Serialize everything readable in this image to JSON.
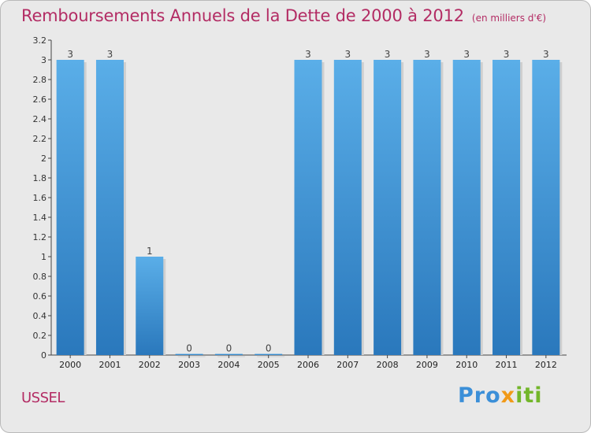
{
  "chart_data": {
    "type": "bar",
    "title": "Remboursements Annuels de la Dette de 2000 à 2012",
    "subtitle": "(en milliers d'€)",
    "categories": [
      "2000",
      "2001",
      "2002",
      "2003",
      "2004",
      "2005",
      "2006",
      "2007",
      "2008",
      "2009",
      "2010",
      "2011",
      "2012"
    ],
    "values": [
      3,
      3,
      1,
      0,
      0,
      0,
      3,
      3,
      3,
      3,
      3,
      3,
      3
    ],
    "data_labels": [
      "3",
      "3",
      "1",
      "0",
      "0",
      "0",
      "3",
      "3",
      "3",
      "3",
      "3",
      "3",
      "3"
    ],
    "y_ticks": [
      "0",
      "0.2",
      "0.4",
      "0.6",
      "0.8",
      "1",
      "1.2",
      "1.4",
      "1.6",
      "1.8",
      "2",
      "2.2",
      "2.4",
      "2.6",
      "2.8",
      "3",
      "3.2"
    ],
    "ylim": [
      0,
      3.2
    ],
    "xlabel": "",
    "ylabel": "",
    "grid": false,
    "colors": {
      "bar_light": "#5aaee8",
      "bar_dark": "#2a78bc",
      "title": "#b32c64"
    }
  },
  "footer": {
    "commune": "USSEL",
    "logo_parts": [
      "Pro",
      "x",
      "iti"
    ]
  }
}
